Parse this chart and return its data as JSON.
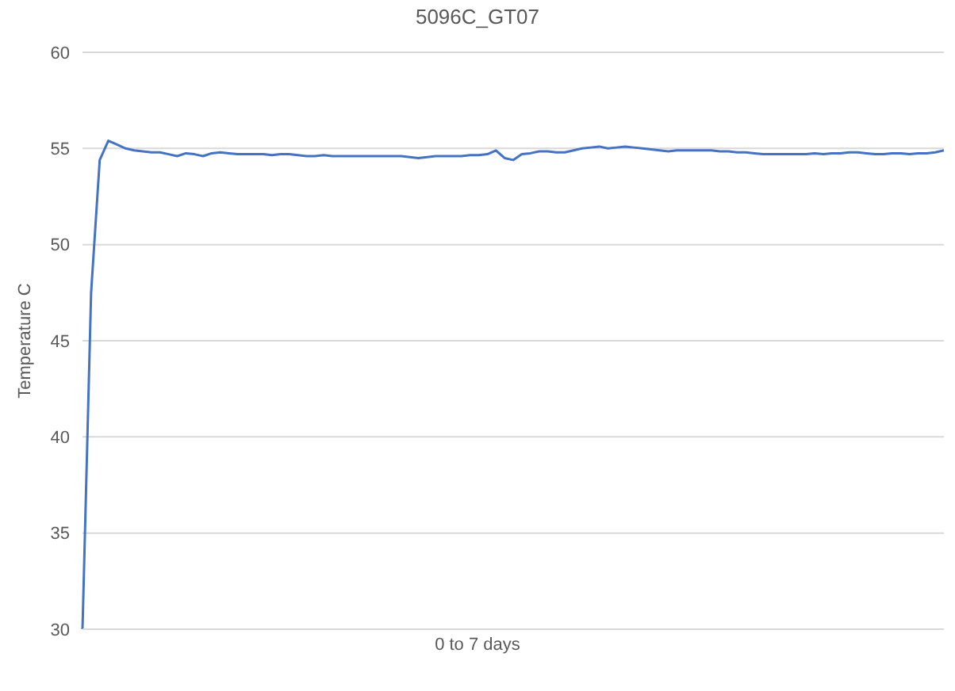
{
  "chart_data": {
    "type": "line",
    "title": "5096C_GT07",
    "xlabel": "0 to 7 days",
    "ylabel": "Temperature C",
    "categories": [
      null,
      null,
      null,
      null,
      null,
      null,
      null,
      null,
      null,
      null,
      null,
      null,
      null,
      null,
      null,
      null,
      null,
      null,
      null,
      null,
      null,
      null,
      null,
      null,
      null,
      null,
      null,
      null,
      null,
      null,
      null,
      null,
      null,
      null,
      null,
      null,
      null,
      null,
      null,
      null,
      null,
      null,
      null,
      null,
      null,
      null,
      null,
      null,
      null,
      null,
      null,
      null,
      null,
      null,
      null,
      null,
      null,
      null,
      null,
      null,
      null,
      null,
      null,
      null,
      null,
      null,
      null,
      null,
      null,
      null,
      null,
      null,
      null,
      null,
      null,
      null,
      null,
      null,
      null,
      null,
      null,
      null,
      null,
      null,
      null,
      null,
      null,
      null,
      null,
      null,
      null,
      null,
      null,
      null,
      null,
      null,
      null,
      null,
      null,
      null,
      null
    ],
    "series": [
      {
        "color": "#4472c4",
        "values": [
          30,
          47.5,
          54.4,
          55.4,
          55.2,
          55.0,
          54.9,
          54.85,
          54.8,
          54.8,
          54.7,
          54.6,
          54.75,
          54.7,
          54.6,
          54.75,
          54.8,
          54.75,
          54.7,
          54.7,
          54.7,
          54.7,
          54.65,
          54.7,
          54.7,
          54.65,
          54.6,
          54.6,
          54.65,
          54.6,
          54.6,
          54.6,
          54.6,
          54.6,
          54.6,
          54.6,
          54.6,
          54.6,
          54.55,
          54.5,
          54.55,
          54.6,
          54.6,
          54.6,
          54.6,
          54.65,
          54.65,
          54.7,
          54.9,
          54.5,
          54.4,
          54.7,
          54.75,
          54.85,
          54.85,
          54.8,
          54.8,
          54.9,
          55.0,
          55.05,
          55.1,
          55.0,
          55.05,
          55.1,
          55.05,
          55.0,
          54.95,
          54.9,
          54.85,
          54.9,
          54.9,
          54.9,
          54.9,
          54.9,
          54.85,
          54.85,
          54.8,
          54.8,
          54.75,
          54.7,
          54.7,
          54.7,
          54.7,
          54.7,
          54.7,
          54.75,
          54.7,
          54.75,
          54.75,
          54.8,
          54.8,
          54.75,
          54.7,
          54.7,
          54.75,
          54.75,
          54.7,
          54.75,
          54.75,
          54.8,
          54.9
        ]
      }
    ],
    "ylim": [
      30,
      60
    ],
    "yticks": [
      30,
      35,
      40,
      45,
      50,
      55,
      60
    ],
    "grid": "y",
    "tick_labels": "y",
    "legend": false,
    "marker": "none",
    "line_style": "solid"
  }
}
